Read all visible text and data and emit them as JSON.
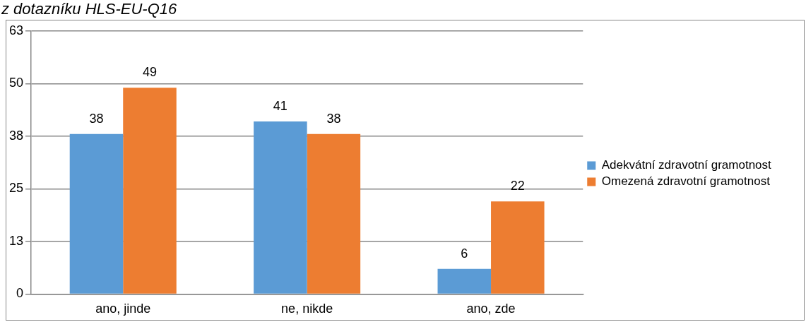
{
  "chart_data": {
    "type": "bar",
    "title": "z dotazníku HLS-EU-Q16",
    "categories": [
      "ano, jinde",
      "ne, nikde",
      "ano, zde"
    ],
    "series": [
      {
        "name": "Adekvátní zdravotní gramotnost",
        "color": "#5b9bd5",
        "values": [
          38,
          41,
          6
        ]
      },
      {
        "name": "Omezená zdravotní gramotnost",
        "color": "#ed7d31",
        "values": [
          49,
          38,
          22
        ]
      }
    ],
    "ylim": [
      0,
      62.5
    ],
    "yticks": [
      0,
      {
        "value": 12.5,
        "label": "13"
      },
      25,
      {
        "value": 37.5,
        "label": "38"
      },
      50,
      {
        "value": 62.5,
        "label": "63"
      }
    ],
    "grid": "y",
    "legend": "right",
    "data_labels": true
  }
}
